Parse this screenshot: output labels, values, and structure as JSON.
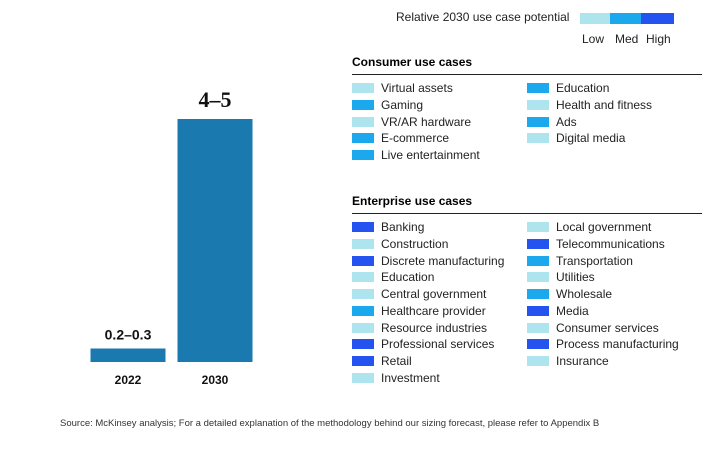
{
  "colors": {
    "bar": "#1a7ab0",
    "low": "#aee4ee",
    "med": "#1ba8ec",
    "high": "#2453ef"
  },
  "legend": {
    "title": "Relative 2030 use case potential",
    "low": "Low",
    "med": "Med",
    "high": "High"
  },
  "chart_data": {
    "type": "bar",
    "categories": [
      "2022",
      "2030"
    ],
    "values": [
      0.25,
      4.5
    ],
    "value_labels": [
      "0.2–0.3",
      "4–5"
    ],
    "ranges": [
      [
        0.2,
        0.3
      ],
      [
        4,
        5
      ]
    ],
    "title": "",
    "xlabel": "",
    "ylabel": "",
    "ylim": [
      0,
      5
    ]
  },
  "consumer": {
    "title": "Consumer use cases",
    "items": [
      {
        "label": "Virtual assets",
        "level": "low"
      },
      {
        "label": "Gaming",
        "level": "med"
      },
      {
        "label": "VR/AR hardware",
        "level": "low"
      },
      {
        "label": "E-commerce",
        "level": "med"
      },
      {
        "label": "Live entertainment",
        "level": "med"
      },
      {
        "label": "Education",
        "level": "med"
      },
      {
        "label": "Health and fitness",
        "level": "low"
      },
      {
        "label": "Ads",
        "level": "med"
      },
      {
        "label": "Digital media",
        "level": "low"
      }
    ]
  },
  "enterprise": {
    "title": "Enterprise use cases",
    "items": [
      {
        "label": "Banking",
        "level": "high"
      },
      {
        "label": "Construction",
        "level": "low"
      },
      {
        "label": "Discrete manufacturing",
        "level": "high"
      },
      {
        "label": "Education",
        "level": "low"
      },
      {
        "label": "Central government",
        "level": "low"
      },
      {
        "label": "Healthcare provider",
        "level": "med"
      },
      {
        "label": "Resource industries",
        "level": "low"
      },
      {
        "label": "Professional services",
        "level": "high"
      },
      {
        "label": "Retail",
        "level": "high"
      },
      {
        "label": "Investment",
        "level": "low"
      },
      {
        "label": "Local government",
        "level": "low"
      },
      {
        "label": "Telecommunications",
        "level": "high"
      },
      {
        "label": "Transportation",
        "level": "med"
      },
      {
        "label": "Utilities",
        "level": "low"
      },
      {
        "label": "Wholesale",
        "level": "med"
      },
      {
        "label": "Media",
        "level": "high"
      },
      {
        "label": "Consumer services",
        "level": "low"
      },
      {
        "label": "Process manufacturing",
        "level": "high"
      },
      {
        "label": "Insurance",
        "level": "low"
      }
    ]
  },
  "footnote": "Source: McKinsey analysis; For a detailed explanation of the methodology behind our sizing forecast, please refer to Appendix B"
}
